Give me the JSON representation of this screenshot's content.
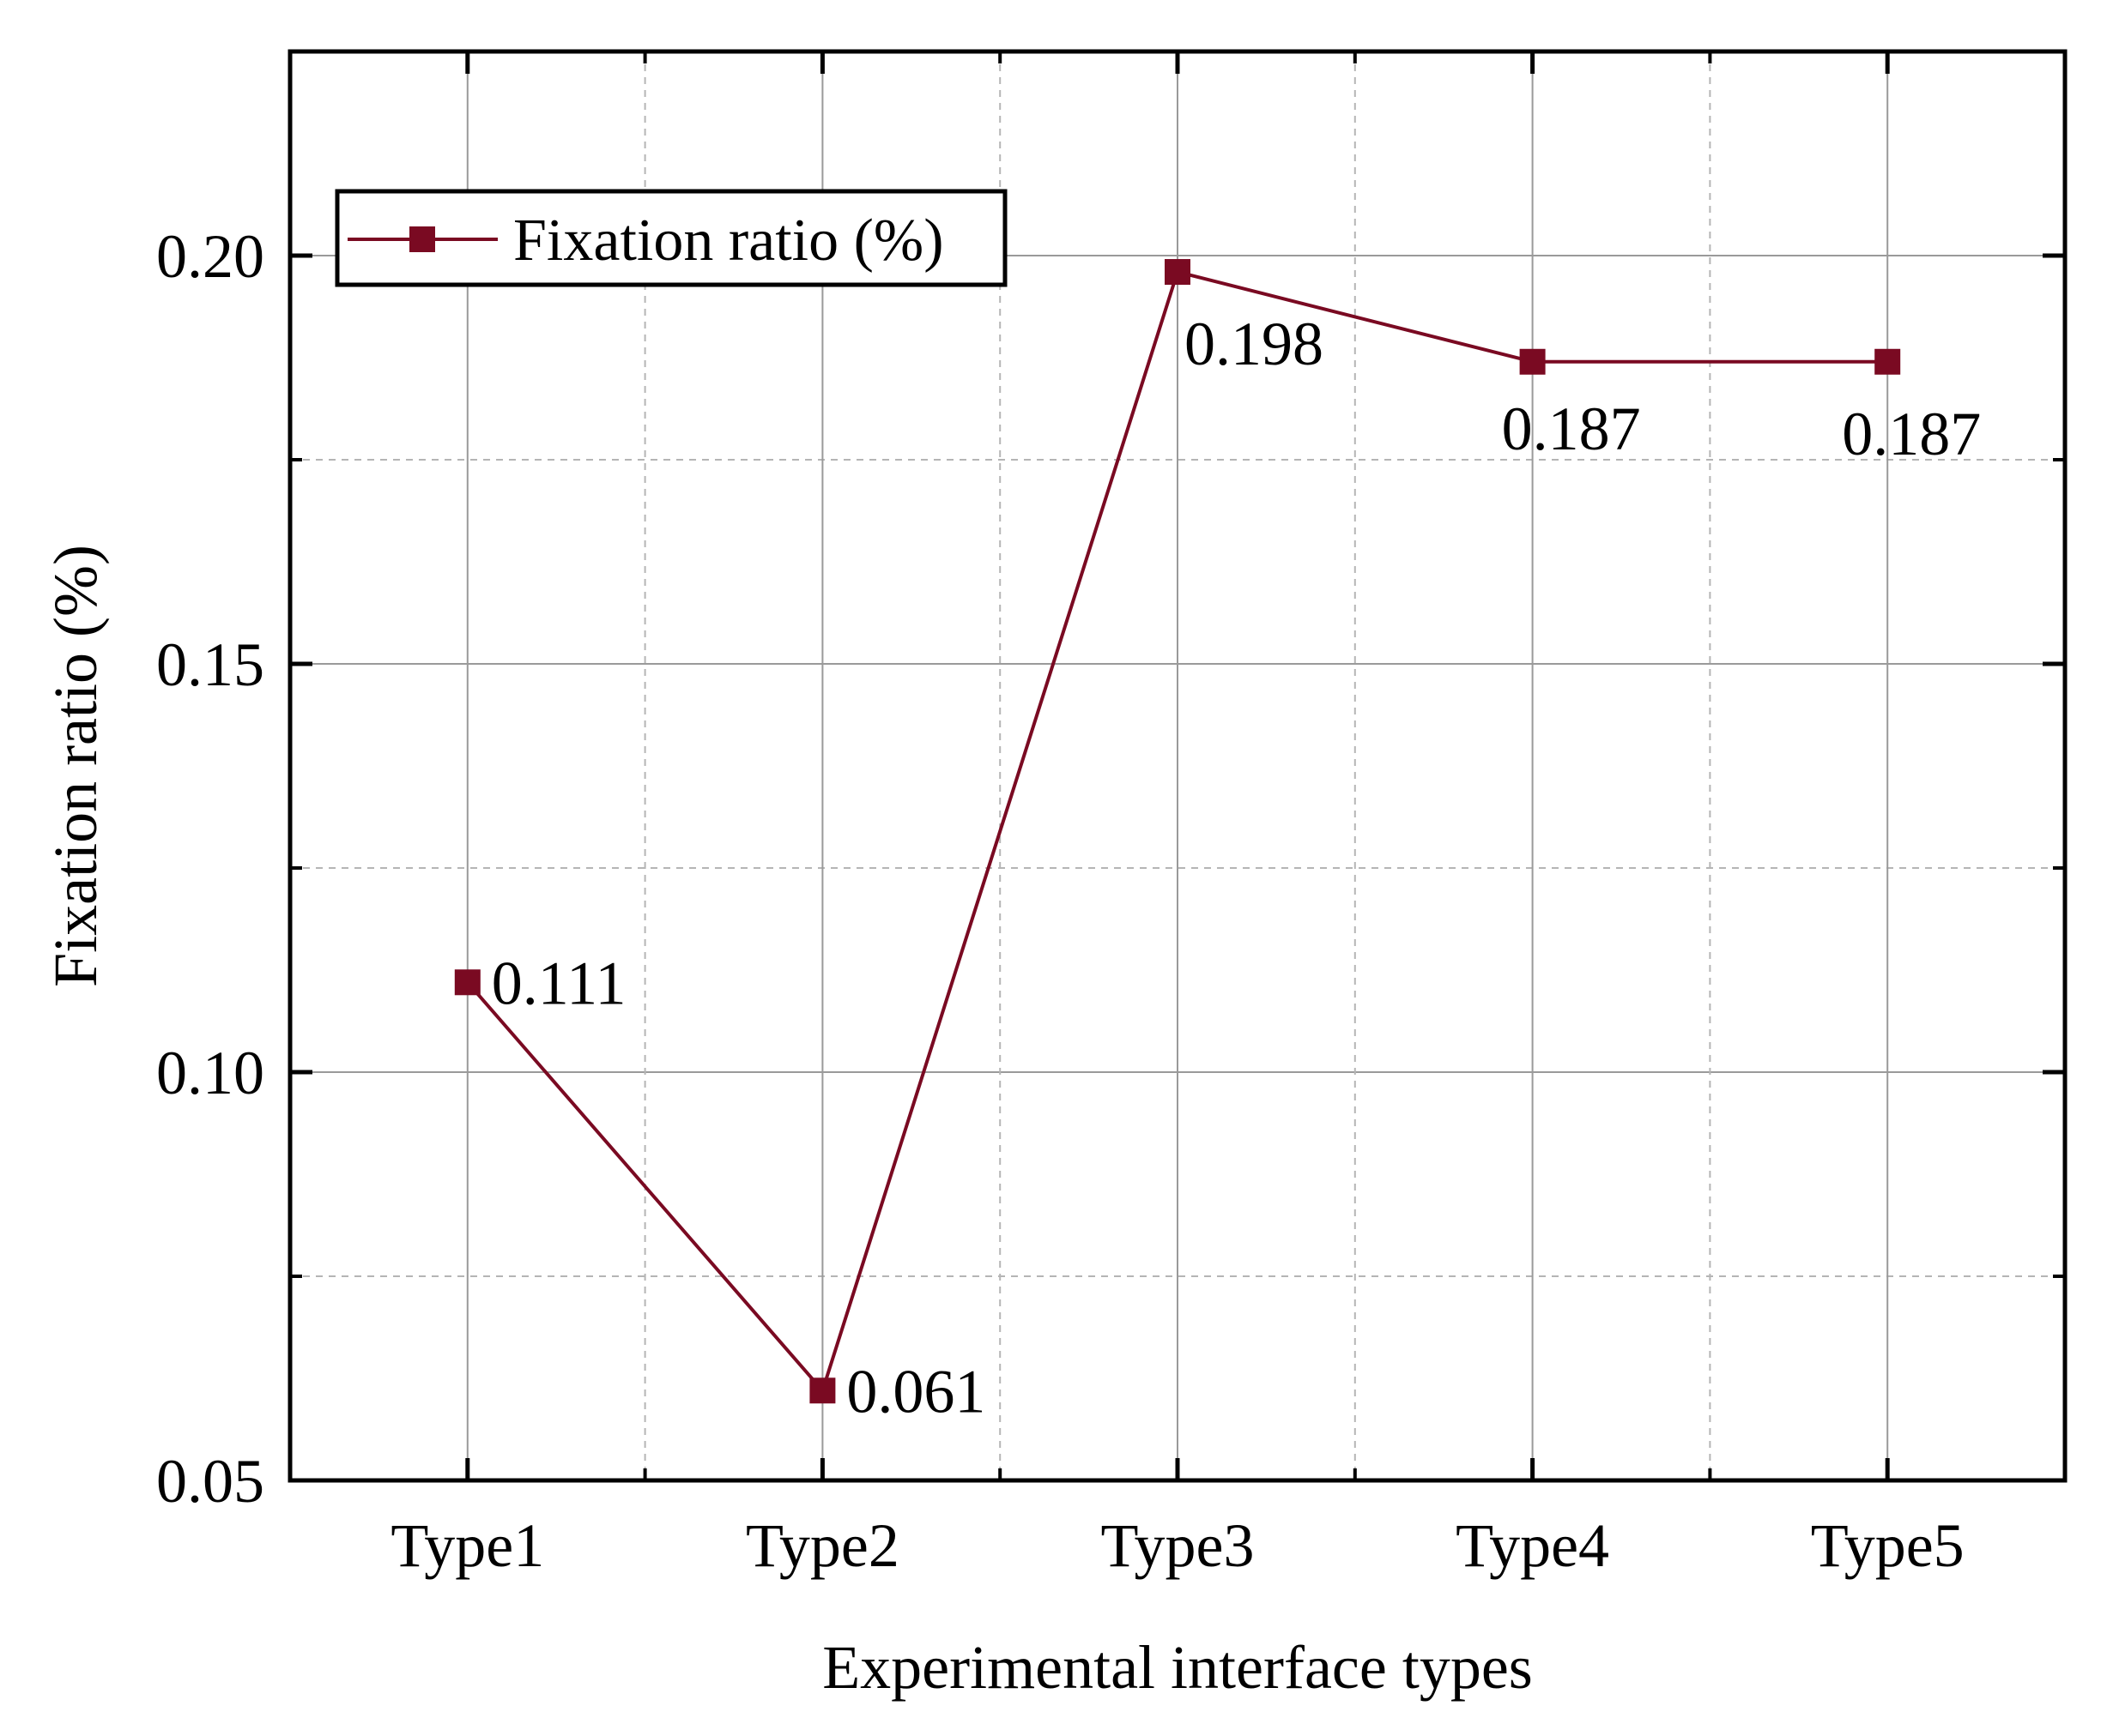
{
  "chart_data": {
    "type": "line",
    "categories": [
      "Type1",
      "Type2",
      "Type3",
      "Type4",
      "Type5"
    ],
    "series": [
      {
        "name": "Fixation ratio (%)",
        "values": [
          0.111,
          0.061,
          0.198,
          0.187,
          0.187
        ],
        "value_labels": [
          "0.111",
          "0.061",
          "0.198",
          "0.187",
          "0.187"
        ],
        "color": "#7a0a22"
      }
    ],
    "xlabel": "Experimental interface types",
    "ylabel": "Fixation ratio (%)",
    "ylim": [
      0.05,
      0.225
    ],
    "yticks": [
      0.05,
      0.1,
      0.15,
      0.2
    ],
    "ytick_labels": [
      "0.05",
      "0.10",
      "0.15",
      "0.20"
    ],
    "minor_yticks": [
      0.075,
      0.125,
      0.175
    ],
    "grid": true,
    "legend_position": "top-left"
  }
}
